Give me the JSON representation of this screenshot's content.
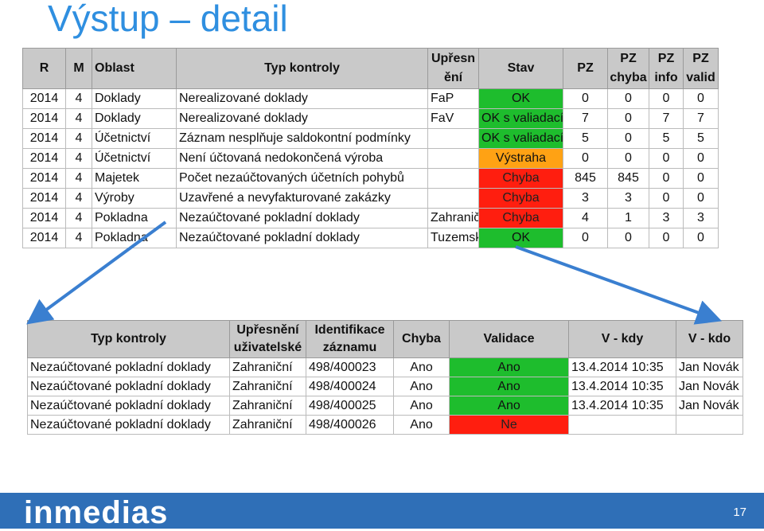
{
  "title": "Výstup – detail",
  "main_table": {
    "headers": [
      "R",
      "M",
      "Oblast",
      "Typ kontroly",
      "Upřesn ění",
      "Stav",
      "PZ",
      "PZ chyba",
      "PZ info",
      "PZ valid"
    ],
    "rows": [
      {
        "r": "2014",
        "m": "4",
        "oblast": "Doklady",
        "typ": "Nerealizované doklady",
        "upresneni": "FaP",
        "stav": "OK",
        "stav_color": "green",
        "pz": "0",
        "chyba": "0",
        "info": "0",
        "valid": "0"
      },
      {
        "r": "2014",
        "m": "4",
        "oblast": "Doklady",
        "typ": "Nerealizované doklady",
        "upresneni": "FaV",
        "stav": "OK s valiadací",
        "stav_color": "green",
        "pz": "7",
        "chyba": "0",
        "info": "7",
        "valid": "7"
      },
      {
        "r": "2014",
        "m": "4",
        "oblast": "Účetnictví",
        "typ": "Záznam nesplňuje saldokontní podmínky",
        "upresneni": "",
        "stav": "OK s valiadací",
        "stav_color": "green",
        "pz": "5",
        "chyba": "0",
        "info": "5",
        "valid": "5"
      },
      {
        "r": "2014",
        "m": "4",
        "oblast": "Účetnictví",
        "typ": "Není účtovaná nedokončená výroba",
        "upresneni": "",
        "stav": "Výstraha",
        "stav_color": "orange",
        "pz": "0",
        "chyba": "0",
        "info": "0",
        "valid": "0"
      },
      {
        "r": "2014",
        "m": "4",
        "oblast": "Majetek",
        "typ": "Počet nezaúčtovaných účetních pohybů",
        "upresneni": "",
        "stav": "Chyba",
        "stav_color": "red",
        "pz": "845",
        "chyba": "845",
        "info": "0",
        "valid": "0"
      },
      {
        "r": "2014",
        "m": "4",
        "oblast": "Výroby",
        "typ": "Uzavřené a nevyfakturované zakázky",
        "upresneni": "",
        "stav": "Chyba",
        "stav_color": "red",
        "pz": "3",
        "chyba": "3",
        "info": "0",
        "valid": "0"
      },
      {
        "r": "2014",
        "m": "4",
        "oblast": "Pokladna",
        "typ": "Nezaúčtované pokladní doklady",
        "upresneni": "Zahraniční",
        "stav": "Chyba",
        "stav_color": "red",
        "pz": "4",
        "chyba": "1",
        "info": "3",
        "valid": "3"
      },
      {
        "r": "2014",
        "m": "4",
        "oblast": "Pokladna",
        "typ": "Nezaúčtované pokladní doklady",
        "upresneni": "Tuzemský",
        "stav": "OK",
        "stav_color": "green",
        "pz": "0",
        "chyba": "0",
        "info": "0",
        "valid": "0"
      }
    ]
  },
  "detail_table": {
    "headers": [
      "Typ kontroly",
      "Upřesnění uživatelské",
      "Identifikace záznamu",
      "Chyba",
      "Validace",
      "V - kdy",
      "V - kdo"
    ],
    "rows": [
      {
        "typ": "Nezaúčtované pokladní doklady",
        "upresneni": "Zahraniční",
        "ident": "498/400023",
        "chyba": "Ano",
        "validace": "Ano",
        "validace_color": "green",
        "kdy": "13.4.2014 10:35",
        "kdo": "Jan Novák"
      },
      {
        "typ": "Nezaúčtované pokladní doklady",
        "upresneni": "Zahraniční",
        "ident": "498/400024",
        "chyba": "Ano",
        "validace": "Ano",
        "validace_color": "green",
        "kdy": "13.4.2014 10:35",
        "kdo": "Jan Novák"
      },
      {
        "typ": "Nezaúčtované pokladní doklady",
        "upresneni": "Zahraniční",
        "ident": "498/400025",
        "chyba": "Ano",
        "validace": "Ano",
        "validace_color": "green",
        "kdy": "13.4.2014 10:35",
        "kdo": "Jan Novák"
      },
      {
        "typ": "Nezaúčtované pokladní doklady",
        "upresneni": "Zahraniční",
        "ident": "498/400026",
        "chyba": "Ano",
        "validace": "Ne",
        "validace_color": "red",
        "kdy": "",
        "kdo": ""
      }
    ]
  },
  "footer": {
    "logo": "inmedias",
    "page_number": "17",
    "bar_color": "#2f6fb7"
  },
  "colors": {
    "title": "#2f8fe0",
    "ok": "#1ebd2d",
    "warning": "#ffa214",
    "error": "#ff1e0f",
    "header_bg": "#c9c9c9",
    "arrow": "#3a7fd0"
  }
}
